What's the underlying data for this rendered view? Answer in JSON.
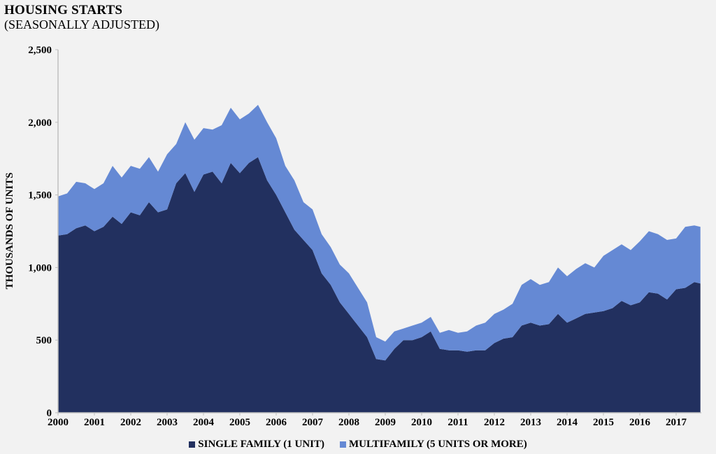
{
  "chart_data": {
    "type": "area",
    "stacked": true,
    "title": "HOUSING STARTS",
    "subtitle": "(SEASONALLY ADJUSTED)",
    "xlabel": "",
    "ylabel": "THOUSANDS OF UNITS",
    "ylim": [
      0,
      2500
    ],
    "yticks": [
      "0",
      "500",
      "1,000",
      "1,500",
      "2,000",
      "2,500"
    ],
    "ytick_values": [
      0,
      500,
      1000,
      1500,
      2000,
      2500
    ],
    "xticks": [
      "2000",
      "2001",
      "2002",
      "2003",
      "2004",
      "2005",
      "2006",
      "2007",
      "2008",
      "2009",
      "2010",
      "2011",
      "2012",
      "2013",
      "2014",
      "2015",
      "2016",
      "2017"
    ],
    "grid": false,
    "legend_position": "bottom",
    "x": [
      "2000-01",
      "2000-04",
      "2000-07",
      "2000-10",
      "2001-01",
      "2001-04",
      "2001-07",
      "2001-10",
      "2002-01",
      "2002-04",
      "2002-07",
      "2002-10",
      "2003-01",
      "2003-04",
      "2003-07",
      "2003-10",
      "2004-01",
      "2004-04",
      "2004-07",
      "2004-10",
      "2005-01",
      "2005-04",
      "2005-07",
      "2005-10",
      "2006-01",
      "2006-04",
      "2006-07",
      "2006-10",
      "2007-01",
      "2007-04",
      "2007-07",
      "2007-10",
      "2008-01",
      "2008-04",
      "2008-07",
      "2008-10",
      "2009-01",
      "2009-04",
      "2009-07",
      "2009-10",
      "2010-01",
      "2010-04",
      "2010-07",
      "2010-10",
      "2011-01",
      "2011-04",
      "2011-07",
      "2011-10",
      "2012-01",
      "2012-04",
      "2012-07",
      "2012-10",
      "2013-01",
      "2013-04",
      "2013-07",
      "2013-10",
      "2014-01",
      "2014-04",
      "2014-07",
      "2014-10",
      "2015-01",
      "2015-04",
      "2015-07",
      "2015-10",
      "2016-01",
      "2016-04",
      "2016-07",
      "2016-10",
      "2017-01",
      "2017-04",
      "2017-07",
      "2017-09"
    ],
    "series": [
      {
        "name": "SINGLE FAMILY (1 UNIT)",
        "color": "#22305f",
        "values": [
          1220,
          1230,
          1270,
          1290,
          1250,
          1280,
          1350,
          1300,
          1380,
          1360,
          1450,
          1380,
          1400,
          1580,
          1650,
          1520,
          1640,
          1660,
          1580,
          1720,
          1650,
          1720,
          1760,
          1600,
          1500,
          1380,
          1260,
          1190,
          1120,
          960,
          880,
          760,
          680,
          600,
          520,
          370,
          360,
          440,
          500,
          500,
          520,
          560,
          440,
          430,
          430,
          420,
          430,
          430,
          480,
          510,
          520,
          600,
          620,
          600,
          610,
          680,
          620,
          650,
          680,
          690,
          700,
          720,
          770,
          740,
          760,
          830,
          820,
          780,
          850,
          860,
          900,
          890
        ]
      },
      {
        "name": "MULTIFAMILY (5 UNITS OR MORE)",
        "color": "#6589d4",
        "values": [
          270,
          280,
          320,
          290,
          290,
          300,
          350,
          320,
          320,
          320,
          310,
          280,
          380,
          270,
          350,
          360,
          320,
          290,
          400,
          380,
          370,
          340,
          360,
          400,
          390,
          320,
          340,
          260,
          280,
          270,
          260,
          260,
          280,
          260,
          240,
          150,
          130,
          120,
          80,
          100,
          100,
          100,
          110,
          140,
          120,
          140,
          170,
          190,
          200,
          200,
          230,
          280,
          300,
          280,
          290,
          320,
          320,
          340,
          350,
          310,
          380,
          400,
          390,
          380,
          420,
          420,
          410,
          410,
          350,
          420,
          390,
          390
        ]
      }
    ]
  }
}
